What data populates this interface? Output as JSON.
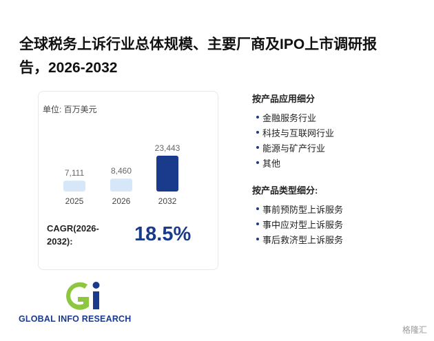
{
  "title": "全球税务上诉行业总体规模、主要厂商及IPO上市调研报告，2026-2032",
  "chart_data": {
    "type": "bar",
    "unit": "单位: 百万美元",
    "categories": [
      "2025",
      "2026",
      "2032"
    ],
    "values": [
      7111,
      8460,
      23443
    ],
    "value_labels": [
      "7,111",
      "8,460",
      "23,443"
    ],
    "colors": [
      "#d5e7f8",
      "#d5e7f8",
      "#1a3a8c"
    ]
  },
  "cagr": {
    "label": "CAGR(2026-2032):",
    "value": "18.5%"
  },
  "segments": [
    {
      "title": "按产品应用细分",
      "items": [
        "金融服务行业",
        "科技与互联网行业",
        "能源与矿产行业",
        "其他"
      ]
    },
    {
      "title": "按产品类型细分:",
      "items": [
        "事前预防型上诉服务",
        "事中应对型上诉服务",
        "事后救济型上诉服务"
      ]
    }
  ],
  "logo": "GLOBAL INFO RESEARCH",
  "watermark": "格隆汇"
}
